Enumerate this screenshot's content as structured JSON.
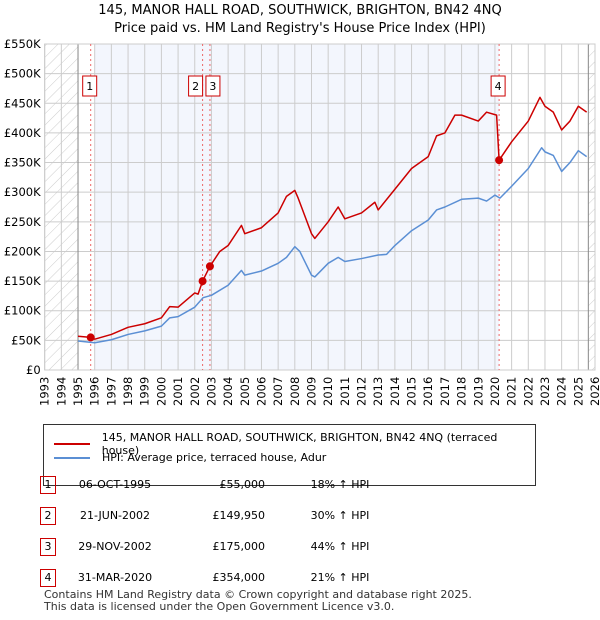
{
  "chart_data": {
    "type": "line",
    "title": "145, MANOR HALL ROAD, SOUTHWICK, BRIGHTON, BN42 4NQ",
    "subtitle": "Price paid vs. HM Land Registry's House Price Index (HPI)",
    "xlim": [
      1993,
      2026
    ],
    "ylim": [
      0,
      550000
    ],
    "x_ticks": [
      "1993",
      "1994",
      "1995",
      "1996",
      "1997",
      "1998",
      "1999",
      "2000",
      "2001",
      "2002",
      "2003",
      "2004",
      "2005",
      "2006",
      "2007",
      "2008",
      "2009",
      "2010",
      "2011",
      "2012",
      "2013",
      "2014",
      "2015",
      "2016",
      "2017",
      "2018",
      "2019",
      "2020",
      "2021",
      "2022",
      "2023",
      "2024",
      "2025",
      "2026"
    ],
    "y_ticks": [
      {
        "v": 0,
        "l": "£0"
      },
      {
        "v": 50000,
        "l": "£50K"
      },
      {
        "v": 100000,
        "l": "£100K"
      },
      {
        "v": 150000,
        "l": "£150K"
      },
      {
        "v": 200000,
        "l": "£200K"
      },
      {
        "v": 250000,
        "l": "£250K"
      },
      {
        "v": 300000,
        "l": "£300K"
      },
      {
        "v": 350000,
        "l": "£350K"
      },
      {
        "v": 400000,
        "l": "£400K"
      },
      {
        "v": 450000,
        "l": "£450K"
      },
      {
        "v": 500000,
        "l": "£500K"
      },
      {
        "v": 550000,
        "l": "£550K"
      }
    ],
    "data_range": [
      1995,
      2025.6
    ],
    "series": [
      {
        "name": "145, MANOR HALL ROAD, SOUTHWICK, BRIGHTON, BN42 4NQ (terraced house)",
        "color": "#cc0000",
        "points": [
          [
            1995,
            57
          ],
          [
            1995.76,
            55
          ],
          [
            1996,
            52
          ],
          [
            1997,
            60
          ],
          [
            1998,
            72
          ],
          [
            1999,
            78
          ],
          [
            2000,
            88
          ],
          [
            2000.5,
            107
          ],
          [
            2001,
            106
          ],
          [
            2002,
            130
          ],
          [
            2002.2,
            128
          ],
          [
            2002.47,
            150
          ],
          [
            2002.91,
            175
          ],
          [
            2003.5,
            200
          ],
          [
            2004,
            210
          ],
          [
            2004.8,
            244
          ],
          [
            2005,
            230
          ],
          [
            2006,
            240
          ],
          [
            2007,
            265
          ],
          [
            2007.5,
            293
          ],
          [
            2008,
            303
          ],
          [
            2008.2,
            290
          ],
          [
            2009,
            230
          ],
          [
            2009.2,
            222
          ],
          [
            2010,
            250
          ],
          [
            2010.6,
            275
          ],
          [
            2011,
            255
          ],
          [
            2012,
            265
          ],
          [
            2012.8,
            283
          ],
          [
            2013,
            270
          ],
          [
            2014,
            305
          ],
          [
            2015,
            340
          ],
          [
            2016,
            360
          ],
          [
            2016.5,
            395
          ],
          [
            2017,
            400
          ],
          [
            2017.6,
            430
          ],
          [
            2018,
            430
          ],
          [
            2019,
            420
          ],
          [
            2019.5,
            435
          ],
          [
            2020.1,
            430
          ],
          [
            2020.25,
            354
          ],
          [
            2021,
            385
          ],
          [
            2022,
            420
          ],
          [
            2022.7,
            460
          ],
          [
            2023,
            445
          ],
          [
            2023.5,
            435
          ],
          [
            2024,
            405
          ],
          [
            2024.5,
            420
          ],
          [
            2025,
            445
          ],
          [
            2025.5,
            435
          ]
        ]
      },
      {
        "name": "HPI: Average price, terraced house, Adur",
        "color": "#5b8fd4",
        "points": [
          [
            1995,
            49
          ],
          [
            1996,
            46
          ],
          [
            1997,
            51
          ],
          [
            1998,
            60
          ],
          [
            1999,
            66
          ],
          [
            2000,
            74
          ],
          [
            2000.5,
            88
          ],
          [
            2001,
            90
          ],
          [
            2002,
            106
          ],
          [
            2002.5,
            122
          ],
          [
            2003,
            126
          ],
          [
            2004,
            143
          ],
          [
            2004.8,
            168
          ],
          [
            2005,
            160
          ],
          [
            2006,
            167
          ],
          [
            2007,
            180
          ],
          [
            2007.5,
            190
          ],
          [
            2008,
            208
          ],
          [
            2008.3,
            200
          ],
          [
            2009,
            160
          ],
          [
            2009.2,
            157
          ],
          [
            2010,
            180
          ],
          [
            2010.6,
            190
          ],
          [
            2011,
            183
          ],
          [
            2012,
            188
          ],
          [
            2013,
            194
          ],
          [
            2013.5,
            195
          ],
          [
            2014,
            210
          ],
          [
            2015,
            235
          ],
          [
            2016,
            253
          ],
          [
            2016.5,
            270
          ],
          [
            2017,
            275
          ],
          [
            2018,
            288
          ],
          [
            2019,
            290
          ],
          [
            2019.5,
            285
          ],
          [
            2020,
            295
          ],
          [
            2020.3,
            290
          ],
          [
            2021,
            310
          ],
          [
            2022,
            340
          ],
          [
            2022.8,
            375
          ],
          [
            2023,
            368
          ],
          [
            2023.5,
            362
          ],
          [
            2024,
            335
          ],
          [
            2024.5,
            350
          ],
          [
            2025,
            370
          ],
          [
            2025.5,
            360
          ]
        ]
      }
    ],
    "sales": [
      {
        "n": "1",
        "x": 1995.76,
        "price": 55000,
        "date": "06-OCT-1995",
        "price_label": "£55,000",
        "hpi": "18% ↑ HPI"
      },
      {
        "n": "2",
        "x": 2002.47,
        "price": 149950,
        "date": "21-JUN-2002",
        "price_label": "£149,950",
        "hpi": "30% ↑ HPI"
      },
      {
        "n": "3",
        "x": 2002.91,
        "price": 175000,
        "date": "29-NOV-2002",
        "price_label": "£175,000",
        "hpi": "44% ↑ HPI"
      },
      {
        "n": "4",
        "x": 2020.25,
        "price": 354000,
        "date": "31-MAR-2020",
        "price_label": "£354,000",
        "hpi": "21% ↑ HPI"
      }
    ]
  },
  "footer": [
    "Contains HM Land Registry data © Crown copyright and database right 2025.",
    "This data is licensed under the Open Government Licence v3.0."
  ]
}
